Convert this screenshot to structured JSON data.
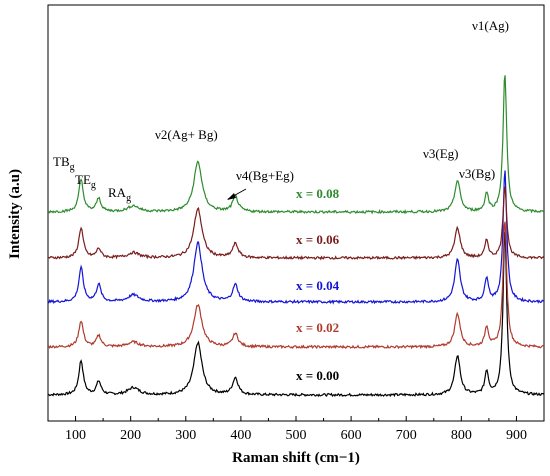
{
  "chart_data": {
    "type": "line",
    "title": "",
    "xlabel": "Raman shift (cm−1)",
    "ylabel": "Intensity (a.u)",
    "xlim": [
      50,
      950
    ],
    "x_ticks": [
      100,
      200,
      300,
      400,
      500,
      600,
      700,
      800,
      900
    ],
    "grid": false,
    "legend": "inline labels beside each trace",
    "y_ticks_shown": false,
    "series": [
      {
        "name": "x = 0.00",
        "color": "#000000",
        "offset": 0,
        "peaks": [
          {
            "x": 110,
            "h": 0.85,
            "w": 5
          },
          {
            "x": 142,
            "h": 0.33,
            "w": 5
          },
          {
            "x": 205,
            "h": 0.18,
            "w": 12
          },
          {
            "x": 322,
            "h": 1.3,
            "w": 9
          },
          {
            "x": 390,
            "h": 0.42,
            "w": 6
          },
          {
            "x": 793,
            "h": 0.98,
            "w": 6
          },
          {
            "x": 846,
            "h": 0.58,
            "w": 4
          },
          {
            "x": 879,
            "h": 4.1,
            "w": 4
          }
        ]
      },
      {
        "name": "x = 0.02",
        "color": "#b03a2e",
        "offset": 1,
        "peaks": [
          {
            "x": 110,
            "h": 0.65,
            "w": 5
          },
          {
            "x": 142,
            "h": 0.28,
            "w": 5
          },
          {
            "x": 205,
            "h": 0.12,
            "w": 12
          },
          {
            "x": 322,
            "h": 1.05,
            "w": 9
          },
          {
            "x": 390,
            "h": 0.33,
            "w": 6
          },
          {
            "x": 793,
            "h": 0.83,
            "w": 6
          },
          {
            "x": 846,
            "h": 0.5,
            "w": 4
          },
          {
            "x": 879,
            "h": 3.2,
            "w": 4
          }
        ]
      },
      {
        "name": "x = 0.04",
        "color": "#1414d6",
        "offset": 2,
        "peaks": [
          {
            "x": 110,
            "h": 0.85,
            "w": 5
          },
          {
            "x": 142,
            "h": 0.43,
            "w": 5
          },
          {
            "x": 205,
            "h": 0.17,
            "w": 12
          },
          {
            "x": 322,
            "h": 1.48,
            "w": 9
          },
          {
            "x": 390,
            "h": 0.42,
            "w": 6
          },
          {
            "x": 793,
            "h": 1.05,
            "w": 6
          },
          {
            "x": 846,
            "h": 0.6,
            "w": 4
          },
          {
            "x": 879,
            "h": 3.3,
            "w": 4
          }
        ]
      },
      {
        "name": "x = 0.06",
        "color": "#7a1c1c",
        "offset": 3,
        "peaks": [
          {
            "x": 110,
            "h": 0.75,
            "w": 5
          },
          {
            "x": 142,
            "h": 0.23,
            "w": 5
          },
          {
            "x": 205,
            "h": 0.13,
            "w": 12
          },
          {
            "x": 322,
            "h": 1.23,
            "w": 9
          },
          {
            "x": 390,
            "h": 0.35,
            "w": 6
          },
          {
            "x": 793,
            "h": 0.75,
            "w": 6
          },
          {
            "x": 846,
            "h": 0.43,
            "w": 4
          },
          {
            "x": 879,
            "h": 1.8,
            "w": 4
          }
        ]
      },
      {
        "name": "x = 0.08",
        "color": "#2e8b2e",
        "offset": 4,
        "peaks": [
          {
            "x": 110,
            "h": 0.8,
            "w": 5
          },
          {
            "x": 142,
            "h": 0.33,
            "w": 5
          },
          {
            "x": 205,
            "h": 0.15,
            "w": 12
          },
          {
            "x": 322,
            "h": 1.25,
            "w": 9
          },
          {
            "x": 390,
            "h": 0.38,
            "w": 6
          },
          {
            "x": 793,
            "h": 0.78,
            "w": 6
          },
          {
            "x": 846,
            "h": 0.45,
            "w": 4
          },
          {
            "x": 879,
            "h": 3.45,
            "w": 4
          }
        ]
      }
    ],
    "peak_annotations": [
      {
        "base": "TB",
        "sub": "g"
      },
      {
        "base": "TE",
        "sub": "g"
      },
      {
        "base": "RA",
        "sub": "g"
      },
      {
        "text": "ν2(Ag+ Bg)"
      },
      {
        "text": "ν4(Bg+Eg)"
      },
      {
        "text": "ν3(Eg)"
      },
      {
        "text": "ν3(Bg)"
      },
      {
        "text": "ν1(Ag)"
      }
    ]
  }
}
